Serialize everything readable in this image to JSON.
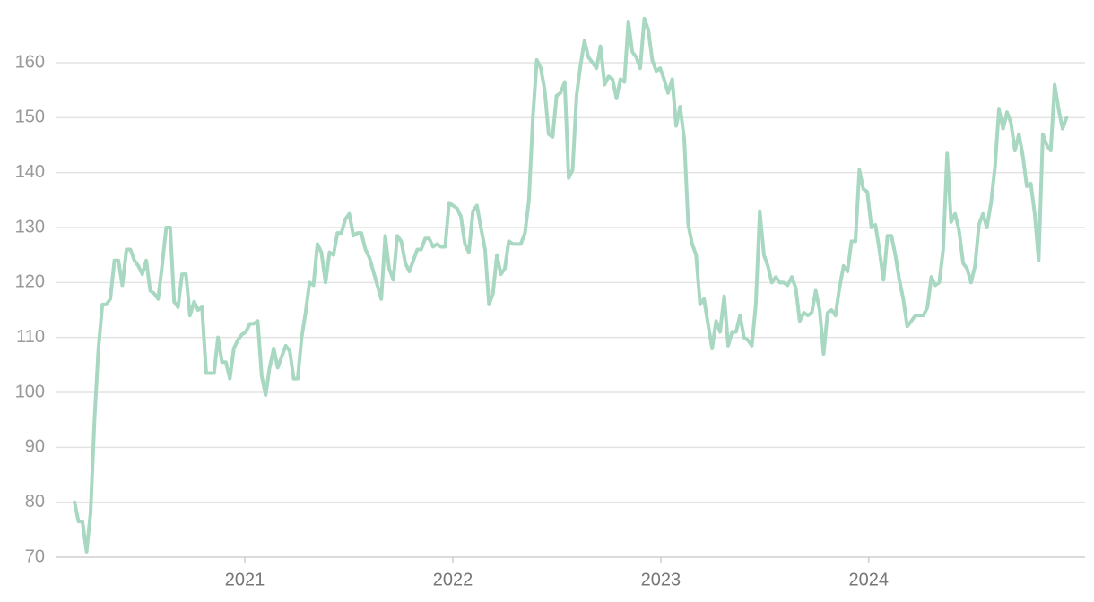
{
  "chart_data": {
    "type": "line",
    "x": [
      2020.181,
      2020.2,
      2020.219,
      2020.239,
      2020.258,
      2020.277,
      2020.296,
      2020.315,
      2020.334,
      2020.353,
      2020.373,
      2020.392,
      2020.411,
      2020.431,
      2020.45,
      2020.469,
      2020.488,
      2020.507,
      2020.526,
      2020.545,
      2020.564,
      2020.583,
      2020.602,
      2020.622,
      2020.641,
      2020.66,
      2020.679,
      2020.698,
      2020.717,
      2020.736,
      2020.756,
      2020.775,
      2020.794,
      2020.814,
      2020.833,
      2020.852,
      2020.871,
      2020.89,
      2020.909,
      2020.928,
      2020.947,
      2020.966,
      2020.985,
      2021.005,
      2021.024,
      2021.043,
      2021.062,
      2021.081,
      2021.1,
      2021.119,
      2021.139,
      2021.158,
      2021.177,
      2021.197,
      2021.216,
      2021.235,
      2021.254,
      2021.273,
      2021.292,
      2021.311,
      2021.33,
      2021.349,
      2021.368,
      2021.388,
      2021.407,
      2021.426,
      2021.445,
      2021.464,
      2021.483,
      2021.502,
      2021.522,
      2021.541,
      2021.56,
      2021.58,
      2021.599,
      2021.618,
      2021.637,
      2021.656,
      2021.675,
      2021.694,
      2021.714,
      2021.733,
      2021.752,
      2021.772,
      2021.791,
      2021.81,
      2021.829,
      2021.848,
      2021.867,
      2021.886,
      2021.905,
      2021.924,
      2021.943,
      2021.963,
      2021.982,
      2022.001,
      2022.02,
      2022.039,
      2022.058,
      2022.077,
      2022.097,
      2022.116,
      2022.135,
      2022.155,
      2022.174,
      2022.193,
      2022.212,
      2022.231,
      2022.25,
      2022.269,
      2022.289,
      2022.308,
      2022.327,
      2022.347,
      2022.366,
      2022.385,
      2022.404,
      2022.423,
      2022.442,
      2022.461,
      2022.48,
      2022.499,
      2022.518,
      2022.538,
      2022.557,
      2022.576,
      2022.595,
      2022.614,
      2022.633,
      2022.652,
      2022.672,
      2022.691,
      2022.71,
      2022.73,
      2022.749,
      2022.768,
      2022.787,
      2022.806,
      2022.825,
      2022.844,
      2022.863,
      2022.882,
      2022.901,
      2022.921,
      2022.94,
      2022.959,
      2022.978,
      2022.997,
      2023.016,
      2023.035,
      2023.055,
      2023.074,
      2023.093,
      2023.113,
      2023.132,
      2023.151,
      2023.17,
      2023.189,
      2023.208,
      2023.227,
      2023.247,
      2023.266,
      2023.285,
      2023.305,
      2023.324,
      2023.343,
      2023.362,
      2023.381,
      2023.4,
      2023.419,
      2023.438,
      2023.457,
      2023.476,
      2023.496,
      2023.515,
      2023.534,
      2023.553,
      2023.572,
      2023.591,
      2023.61,
      2023.63,
      2023.649,
      2023.668,
      2023.688,
      2023.707,
      2023.726,
      2023.745,
      2023.764,
      2023.783,
      2023.802,
      2023.821,
      2023.84,
      2023.859,
      2023.879,
      2023.898,
      2023.917,
      2023.936,
      2023.955,
      2023.974,
      2023.993,
      2024.013,
      2024.032,
      2024.051,
      2024.071,
      2024.09,
      2024.109,
      2024.128,
      2024.147,
      2024.166,
      2024.185,
      2024.205,
      2024.224,
      2024.243,
      2024.263,
      2024.282,
      2024.301,
      2024.32,
      2024.339,
      2024.358,
      2024.377,
      2024.396,
      2024.415,
      2024.434,
      2024.454,
      2024.473,
      2024.492,
      2024.511,
      2024.53,
      2024.549,
      2024.568,
      2024.588,
      2024.607,
      2024.626,
      2024.646,
      2024.665,
      2024.684,
      2024.703,
      2024.722,
      2024.741,
      2024.76,
      2024.779,
      2024.798,
      2024.817,
      2024.837,
      2024.856,
      2024.875,
      2024.894,
      2024.913,
      2024.932,
      2024.951
    ],
    "series": [
      {
        "color": "#a8d8c1",
        "values": [
          80,
          76.5,
          76.5,
          71,
          78,
          95,
          108,
          116,
          116,
          117,
          124,
          124,
          119.5,
          126,
          126,
          124,
          123,
          121.5,
          124,
          118.5,
          118,
          117,
          123,
          130,
          130,
          116.5,
          115.5,
          121.5,
          121.5,
          114,
          116.5,
          115,
          115.5,
          103.5,
          103.5,
          103.5,
          110,
          105.5,
          105.5,
          102.5,
          108,
          109.5,
          110.5,
          111,
          112.5,
          112.5,
          113,
          103,
          99.5,
          104.5,
          108,
          104.5,
          106.5,
          108.5,
          107.5,
          102.5,
          102.5,
          110,
          114.5,
          120,
          119.5,
          127,
          125.5,
          120,
          125.5,
          125,
          129,
          129,
          131.5,
          132.5,
          128.5,
          129,
          129,
          126,
          124.5,
          122,
          119.5,
          117,
          128.5,
          122.5,
          120.5,
          128.5,
          127.5,
          123.5,
          122,
          124,
          126,
          126,
          128,
          128,
          126.5,
          127,
          126.5,
          126.5,
          134.5,
          134,
          133.5,
          132,
          127,
          125.5,
          133,
          134,
          130,
          126,
          116,
          118,
          125,
          121.5,
          122.5,
          127.5,
          127,
          127,
          127,
          129,
          135,
          150,
          160.5,
          159,
          155,
          147,
          146.5,
          154,
          154.5,
          156.5,
          139,
          140.5,
          154,
          159.5,
          164,
          161,
          160,
          159,
          163,
          156,
          157.5,
          157,
          153.5,
          157,
          156.5,
          167.5,
          162,
          161,
          159,
          168,
          166,
          160.5,
          158.5,
          159,
          157,
          154.5,
          157,
          148.5,
          152,
          146,
          130.5,
          127,
          125,
          116,
          117,
          112.5,
          108,
          113,
          111,
          117.5,
          108.5,
          111,
          111,
          114,
          110,
          109.5,
          108.5,
          116,
          133,
          125,
          123,
          120,
          121,
          120,
          120,
          119.5,
          121,
          119,
          113,
          114.5,
          114,
          114.5,
          118.5,
          115,
          107,
          114.5,
          115,
          114,
          119,
          123,
          122,
          127.5,
          127.5,
          140.5,
          137,
          136.5,
          130,
          130.5,
          126,
          120.5,
          128.5,
          128.5,
          125,
          120.5,
          117,
          112,
          113,
          114,
          114,
          114,
          115.5,
          121,
          119.5,
          120,
          126,
          143.5,
          131,
          132.5,
          129.5,
          123.5,
          122.5,
          120,
          123,
          130.5,
          132.5,
          130,
          134.5,
          141,
          151.5,
          148,
          151,
          149,
          144,
          147,
          143,
          137.5,
          138,
          132.5,
          124,
          147,
          145,
          144,
          156,
          151.5,
          148,
          150
        ]
      }
    ],
    "xlim": [
      2020.09,
      2025.04
    ],
    "xticks": [
      2021,
      2022,
      2023,
      2024
    ],
    "ylim": [
      70,
      170
    ],
    "yticks": [
      70,
      80,
      90,
      100,
      110,
      120,
      130,
      140,
      150,
      160
    ],
    "grid": true
  }
}
